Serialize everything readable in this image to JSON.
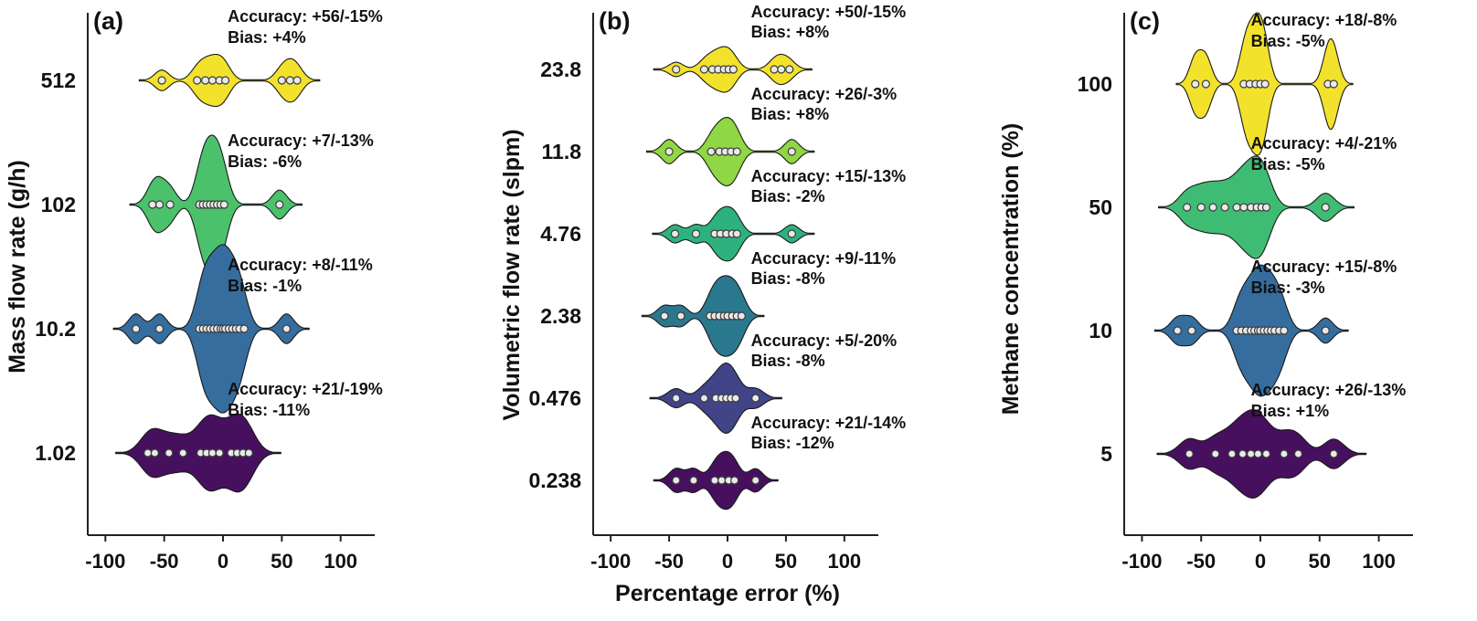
{
  "figure": {
    "xlabel": "Percentage error (%)",
    "x_ticks": [
      -100,
      -50,
      0,
      50,
      100
    ],
    "xlim": [
      -115,
      115
    ],
    "grid": false,
    "legend": false,
    "point_color": "#e9e9e9",
    "outline_color": "#1a1a1a"
  },
  "chart_data": [
    {
      "type": "violin",
      "panel_label": "(a)",
      "ylabel": "Mass flow rate (g/h)",
      "categories": [
        "512",
        "102",
        "10.2",
        "1.02"
      ],
      "rows": [
        {
          "category": "512",
          "color": "#f3e22b",
          "width": 0.3,
          "bw": 6,
          "accuracy": "Accuracy: +56/-15%",
          "bias": "Bias: +4%",
          "points": [
            -52,
            -22,
            -15,
            -9,
            -3,
            2,
            50,
            57,
            63
          ]
        },
        {
          "category": "102",
          "color": "#4bc16c",
          "width": 0.8,
          "bw": 6,
          "accuracy": "Accuracy: +7/-13%",
          "bias": "Bias: -6%",
          "points": [
            -60,
            -54,
            -45,
            -20,
            -17,
            -14,
            -11,
            -8,
            -5,
            -2,
            1,
            48
          ]
        },
        {
          "category": "10.2",
          "color": "#356d9e",
          "width": 0.97,
          "bw": 6,
          "accuracy": "Accuracy: +8/-11%",
          "bias": "Bias: -1%",
          "points": [
            -74,
            -54,
            -20,
            -17,
            -14,
            -11,
            -8,
            -5,
            -2,
            0,
            2,
            5,
            8,
            11,
            14,
            18,
            54
          ]
        },
        {
          "category": "1.02",
          "color": "#46105e",
          "width": 0.45,
          "bw": 8.5,
          "accuracy": "Accuracy: +21/-19%",
          "bias": "Bias: -11%",
          "points": [
            -64,
            -58,
            -46,
            -34,
            -19,
            -14,
            -9,
            -3,
            7,
            12,
            17,
            22
          ]
        }
      ]
    },
    {
      "type": "violin",
      "panel_label": "(b)",
      "ylabel": "Volumetric flow rate (slpm)",
      "categories": [
        "23.8",
        "11.8",
        "4.76",
        "2.38",
        "0.476",
        "0.238"
      ],
      "rows": [
        {
          "category": "23.8",
          "color": "#f3e22b",
          "width": 0.52,
          "bw": 6,
          "accuracy": "Accuracy: +50/-15%",
          "bias": "Bias: +8%",
          "points": [
            -44,
            -20,
            -13,
            -8,
            -3,
            1,
            5,
            40,
            46,
            53
          ]
        },
        {
          "category": "11.8",
          "color": "#8fd744",
          "width": 0.78,
          "bw": 6,
          "accuracy": "Accuracy: +26/-3%",
          "bias": "Bias: +8%",
          "points": [
            -50,
            -14,
            -7,
            -2,
            3,
            8,
            55
          ]
        },
        {
          "category": "4.76",
          "color": "#2db27d",
          "width": 0.62,
          "bw": 6,
          "accuracy": "Accuracy: +15/-13%",
          "bias": "Bias: -2%",
          "points": [
            -45,
            -27,
            -11,
            -6,
            -1,
            4,
            8,
            55
          ]
        },
        {
          "category": "2.38",
          "color": "#2a788e",
          "width": 0.92,
          "bw": 6,
          "accuracy": "Accuracy: +9/-11%",
          "bias": "Bias: -8%",
          "points": [
            -54,
            -40,
            -15,
            -11,
            -7,
            -3,
            0,
            4,
            8,
            12
          ]
        },
        {
          "category": "0.476",
          "color": "#414487",
          "width": 0.8,
          "bw": 7,
          "accuracy": "Accuracy: +5/-20%",
          "bias": "Bias: -8%",
          "points": [
            -44,
            -20,
            -10,
            -5,
            -1,
            3,
            7,
            24
          ]
        },
        {
          "category": "0.238",
          "color": "#46105e",
          "width": 0.66,
          "bw": 6,
          "accuracy": "Accuracy: +21/-14%",
          "bias": "Bias: -12%",
          "points": [
            -44,
            -29,
            -11,
            -5,
            1,
            6,
            24
          ]
        }
      ]
    },
    {
      "type": "violin",
      "panel_label": "(c)",
      "ylabel": "Methane concentration (%)",
      "categories": [
        "100",
        "50",
        "10",
        "5"
      ],
      "rows": [
        {
          "category": "100",
          "color": "#f3e22b",
          "width": 1.0,
          "bw": 5,
          "accuracy": "Accuracy: +18/-8%",
          "bias": "Bias: -5%",
          "points": [
            -55,
            -46,
            -14,
            -9,
            -4,
            0,
            4,
            57,
            62
          ]
        },
        {
          "category": "50",
          "color": "#3fbc73",
          "width": 0.72,
          "bw": 7.5,
          "accuracy": "Accuracy: +4/-21%",
          "bias": "Bias: -5%",
          "points": [
            -62,
            -50,
            -40,
            -30,
            -20,
            -14,
            -8,
            -3,
            1,
            5,
            55
          ]
        },
        {
          "category": "10",
          "color": "#356d9e",
          "width": 0.92,
          "bw": 6,
          "accuracy": "Accuracy: +15/-8%",
          "bias": "Bias: -3%",
          "points": [
            -70,
            -58,
            -20,
            -16,
            -12,
            -8,
            -5,
            -2,
            0,
            3,
            6,
            9,
            12,
            16,
            20,
            55
          ]
        },
        {
          "category": "5",
          "color": "#46105e",
          "width": 0.62,
          "bw": 8.5,
          "accuracy": "Accuracy: +26/-13%",
          "bias": "Bias: +1%",
          "points": [
            -60,
            -38,
            -24,
            -15,
            -8,
            -2,
            5,
            20,
            32,
            62
          ]
        }
      ]
    }
  ]
}
